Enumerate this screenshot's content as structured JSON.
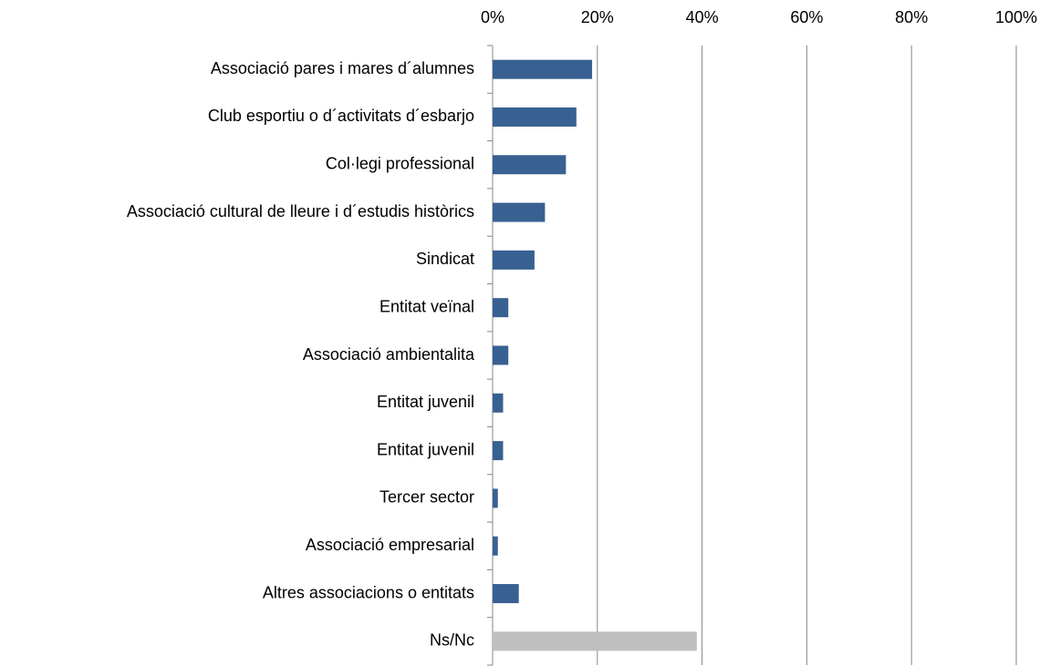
{
  "chart_data": {
    "type": "hbar",
    "categories": [
      "Associació pares i mares d´alumnes",
      "Club esportiu o d´activitats d´esbarjo",
      "Col·legi professional",
      "Associació cultural de lleure i d´estudis històrics",
      "Sindicat",
      "Entitat veïnal",
      "Associació ambientalita",
      "Entitat juvenil",
      "Entitat juvenil",
      "Tercer sector",
      "Associació empresarial",
      "Altres associacions o entitats",
      "Ns/Nc"
    ],
    "values": [
      19,
      16,
      14,
      10,
      8,
      3,
      3,
      2,
      2,
      1,
      1,
      5,
      39
    ],
    "colors": [
      "#386192",
      "#386192",
      "#386192",
      "#386192",
      "#386192",
      "#386192",
      "#386192",
      "#386192",
      "#386192",
      "#386192",
      "#386192",
      "#386192",
      "#bfbfbf"
    ],
    "xlim": [
      0,
      100
    ],
    "xticks": [
      {
        "value": 0,
        "label": "0%"
      },
      {
        "value": 20,
        "label": "20%"
      },
      {
        "value": 40,
        "label": "40%"
      },
      {
        "value": 60,
        "label": "60%"
      },
      {
        "value": 80,
        "label": "80%"
      },
      {
        "value": 100,
        "label": "100%"
      }
    ],
    "grid": true
  }
}
